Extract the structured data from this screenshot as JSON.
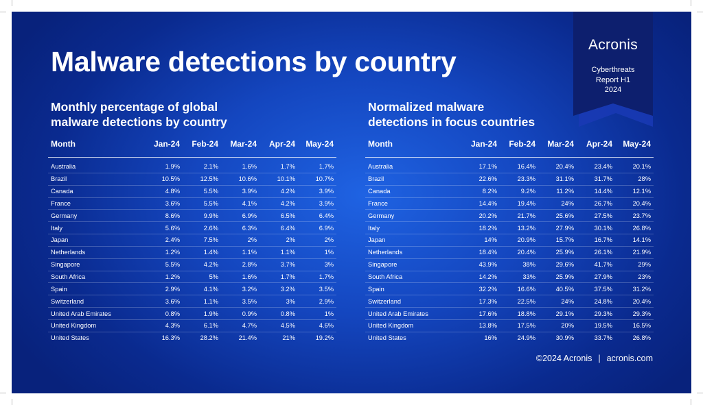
{
  "title": "Malware detections by country",
  "brand": {
    "name": "Acronis",
    "report_lines": [
      "Cyberthreats",
      "Report H1",
      "2024"
    ]
  },
  "left_table": {
    "heading_lines": [
      "Monthly percentage of global",
      "malware detections by country"
    ],
    "columns": [
      "Month",
      "Jan-24",
      "Feb-24",
      "Mar-24",
      "Apr-24",
      "May-24"
    ],
    "rows": [
      {
        "country": "Australia",
        "values": [
          "1.9%",
          "2.1%",
          "1.6%",
          "1.7%",
          "1.7%"
        ]
      },
      {
        "country": "Brazil",
        "values": [
          "10.5%",
          "12.5%",
          "10.6%",
          "10.1%",
          "10.7%"
        ]
      },
      {
        "country": "Canada",
        "values": [
          "4.8%",
          "5.5%",
          "3.9%",
          "4.2%",
          "3.9%"
        ]
      },
      {
        "country": "France",
        "values": [
          "3.6%",
          "5.5%",
          "4.1%",
          "4.2%",
          "3.9%"
        ]
      },
      {
        "country": "Germany",
        "values": [
          "8.6%",
          "9.9%",
          "6.9%",
          "6.5%",
          "6.4%"
        ]
      },
      {
        "country": "Italy",
        "values": [
          "5.6%",
          "2.6%",
          "6.3%",
          "6.4%",
          "6.9%"
        ]
      },
      {
        "country": "Japan",
        "values": [
          "2.4%",
          "7.5%",
          "2%",
          "2%",
          "2%"
        ]
      },
      {
        "country": "Netherlands",
        "values": [
          "1.2%",
          "1.4%",
          "1.1%",
          "1.1%",
          "1%"
        ]
      },
      {
        "country": "Singapore",
        "values": [
          "5.5%",
          "4.2%",
          "2.8%",
          "3.7%",
          "3%"
        ]
      },
      {
        "country": "South Africa",
        "values": [
          "1.2%",
          "5%",
          "1.6%",
          "1.7%",
          "1.7%"
        ]
      },
      {
        "country": "Spain",
        "values": [
          "2.9%",
          "4.1%",
          "3.2%",
          "3.2%",
          "3.5%"
        ]
      },
      {
        "country": "Switzerland",
        "values": [
          "3.6%",
          "1.1%",
          "3.5%",
          "3%",
          "2.9%"
        ]
      },
      {
        "country": "United Arab Emirates",
        "values": [
          "0.8%",
          "1.9%",
          "0.9%",
          "0.8%",
          "1%"
        ]
      },
      {
        "country": "United Kingdom",
        "values": [
          "4.3%",
          "6.1%",
          "4.7%",
          "4.5%",
          "4.6%"
        ]
      },
      {
        "country": "United States",
        "values": [
          "16.3%",
          "28.2%",
          "21.4%",
          "21%",
          "19.2%"
        ]
      }
    ]
  },
  "right_table": {
    "heading_lines": [
      "Normalized malware",
      "detections in focus countries"
    ],
    "columns": [
      "Month",
      "Jan-24",
      "Feb-24",
      "Mar-24",
      "Apr-24",
      "May-24"
    ],
    "rows": [
      {
        "country": "Australia",
        "values": [
          "17.1%",
          "16.4%",
          "20.4%",
          "23.4%",
          "20.1%"
        ]
      },
      {
        "country": "Brazil",
        "values": [
          "22.6%",
          "23.3%",
          "31.1%",
          "31.7%",
          "28%"
        ]
      },
      {
        "country": "Canada",
        "values": [
          "8.2%",
          "9.2%",
          "11.2%",
          "14.4%",
          "12.1%"
        ]
      },
      {
        "country": "France",
        "values": [
          "14.4%",
          "19.4%",
          "24%",
          "26.7%",
          "20.4%"
        ]
      },
      {
        "country": "Germany",
        "values": [
          "20.2%",
          "21.7%",
          "25.6%",
          "27.5%",
          "23.7%"
        ]
      },
      {
        "country": "Italy",
        "values": [
          "18.2%",
          "13.2%",
          "27.9%",
          "30.1%",
          "26.8%"
        ]
      },
      {
        "country": "Japan",
        "values": [
          "14%",
          "20.9%",
          "15.7%",
          "16.7%",
          "14.1%"
        ]
      },
      {
        "country": "Netherlands",
        "values": [
          "18.4%",
          "20.4%",
          "25.9%",
          "26.1%",
          "21.9%"
        ]
      },
      {
        "country": "Singapore",
        "values": [
          "43.9%",
          "38%",
          "29.6%",
          "41.7%",
          "29%"
        ]
      },
      {
        "country": "South Africa",
        "values": [
          "14.2%",
          "33%",
          "25.9%",
          "27.9%",
          "23%"
        ]
      },
      {
        "country": "Spain",
        "values": [
          "32.2%",
          "16.6%",
          "40.5%",
          "37.5%",
          "31.2%"
        ]
      },
      {
        "country": "Switzerland",
        "values": [
          "17.3%",
          "22.5%",
          "24%",
          "24.8%",
          "20.4%"
        ]
      },
      {
        "country": "United Arab Emirates",
        "values": [
          "17.6%",
          "18.8%",
          "29.1%",
          "29.3%",
          "29.3%"
        ]
      },
      {
        "country": "United Kingdom",
        "values": [
          "13.8%",
          "17.5%",
          "20%",
          "19.5%",
          "16.5%"
        ]
      },
      {
        "country": "United States",
        "values": [
          "16%",
          "24.9%",
          "30.9%",
          "33.7%",
          "26.8%"
        ]
      }
    ]
  },
  "footer": {
    "copyright": "©2024 Acronis",
    "separator": "|",
    "website": "acronis.com"
  },
  "colors": {
    "background_center": "#1f63e3",
    "background_edge": "#08227c",
    "ribbon": "#0d1f6e",
    "ribbon_shadow": "#1a3ab5",
    "text": "#ffffff"
  }
}
